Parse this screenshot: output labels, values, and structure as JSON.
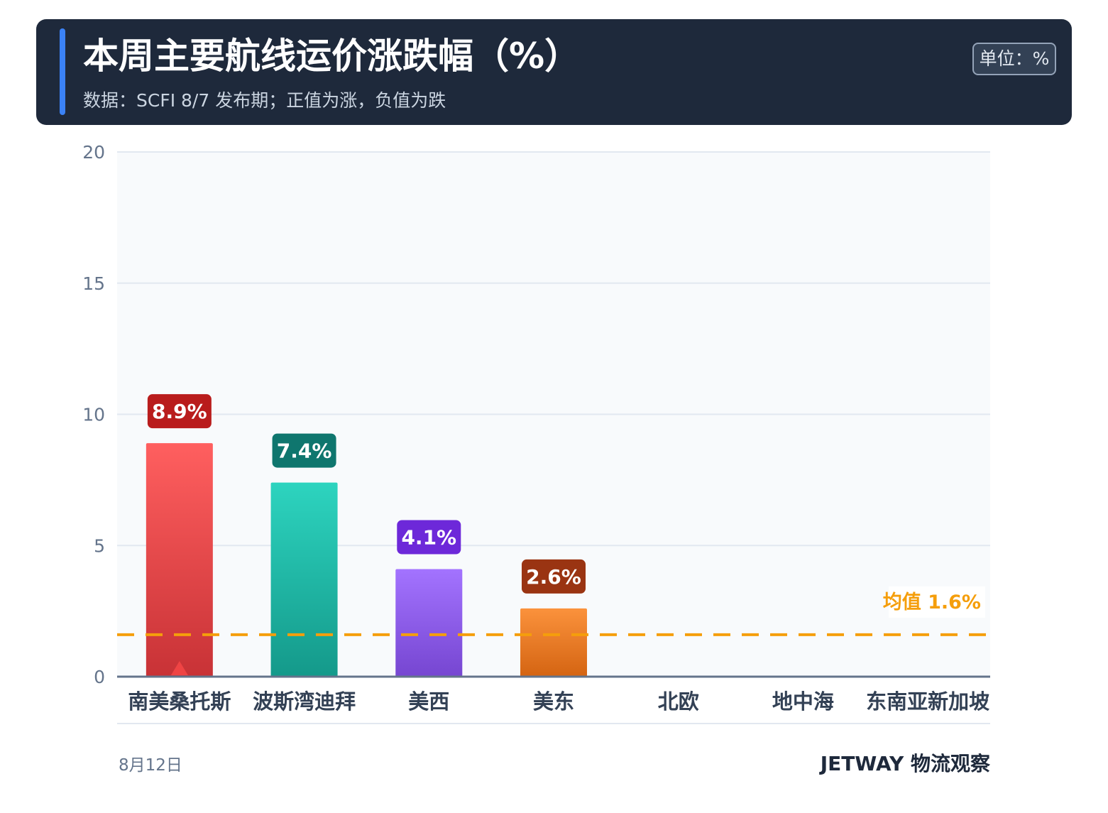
{
  "header": {
    "title": "本周主要航线运价涨跌幅（%）",
    "subtitle": "数据：SCFI 8/7 发布期；正值为涨，负值为跌",
    "unit_badge": "单位：%"
  },
  "footer": {
    "date": "8月12日",
    "brand": "JETWAY 物流观察"
  },
  "colors": {
    "header_bg": "#1e293b",
    "accent": "#3b82f6",
    "mean_line": "#f59e0b",
    "bars": [
      {
        "top": "#ff5f5f",
        "bottom": "#c83236",
        "label_bg": "#b91c1c"
      },
      {
        "top": "#2dd4bf",
        "bottom": "#14998a",
        "label_bg": "#0f766e"
      },
      {
        "top": "#a373ff",
        "bottom": "#7646d1",
        "label_bg": "#6d28d9"
      },
      {
        "top": "#fb923c",
        "bottom": "#d46412",
        "label_bg": "#9a3412"
      }
    ]
  },
  "chart_data": {
    "type": "bar",
    "categories": [
      "南美桑托斯",
      "波斯湾迪拜",
      "美西",
      "美东",
      "北欧",
      "地中海",
      "东南亚新加坡"
    ],
    "values": [
      8.9,
      7.4,
      4.1,
      2.6,
      0,
      0,
      0
    ],
    "data_labels": [
      "8.9%",
      "7.4%",
      "4.1%",
      "2.6%",
      "",
      "",
      ""
    ],
    "ylim": [
      0,
      20
    ],
    "yticks": [
      0,
      5,
      10,
      15,
      20
    ],
    "grid": true,
    "mean": {
      "value": 1.6,
      "label": "均值 1.6%"
    },
    "marker": {
      "category_index": 0,
      "shape": "up-triangle"
    }
  }
}
